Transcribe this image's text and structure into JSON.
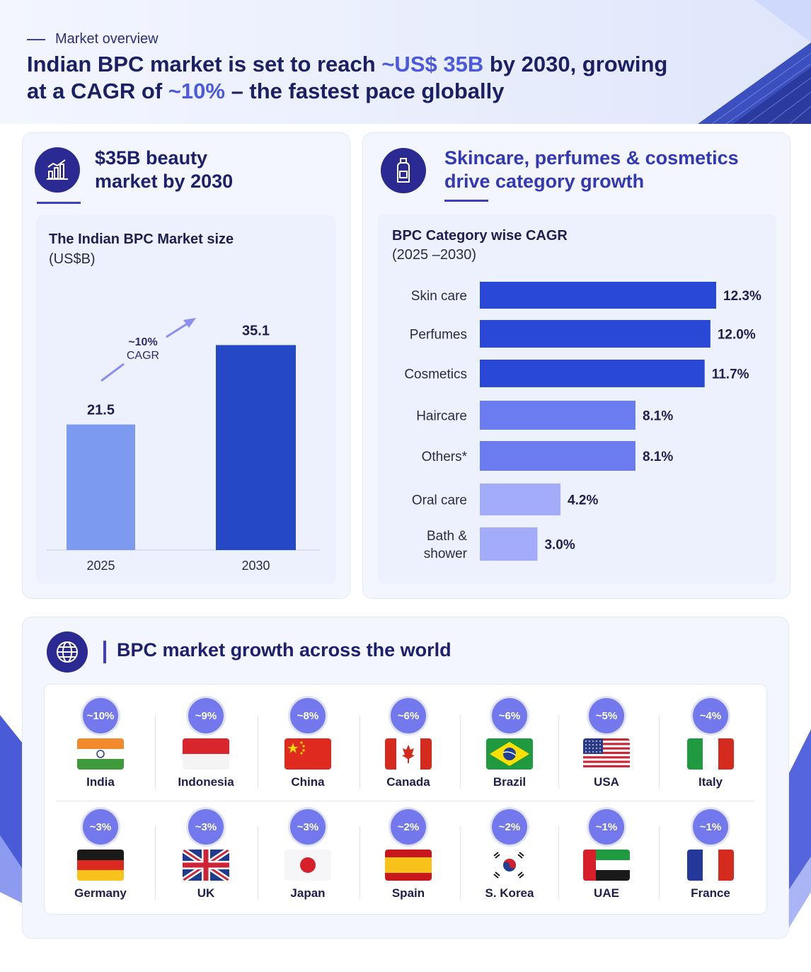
{
  "header": {
    "kicker": "Market overview",
    "title_part1": "Indian BPC market is set to reach ",
    "title_hl1": "~US$ 35B",
    "title_part2": " by 2030, growing",
    "title_part3": "at a CAGR of ",
    "title_hl2": "~10%",
    "title_part4": " – the fastest pace globally"
  },
  "card1": {
    "title_line1": "$35B beauty",
    "title_line2": "market by 2030",
    "icon": "bar-growth-icon"
  },
  "card2": {
    "title_line1": "Skincare, perfumes & cosmetics",
    "title_line2": "drive category growth",
    "icon": "bottle-icon"
  },
  "chart_data": [
    {
      "type": "bar",
      "title": "The Indian BPC Market size",
      "subtitle": "(US$B)",
      "categories": [
        "2025",
        "2030"
      ],
      "values": [
        21.5,
        35.1
      ],
      "value_labels": [
        "21.5",
        "35.1"
      ],
      "annotation_line1": "~10%",
      "annotation_line2": "CAGR",
      "colors": [
        "#7b9af0",
        "#2548c6"
      ],
      "ylim": [
        0,
        40
      ]
    },
    {
      "type": "bar",
      "orientation": "horizontal",
      "title": "BPC Category wise CAGR",
      "subtitle": "(2025 –2030)",
      "categories": [
        "Skin care",
        "Perfumes",
        "Cosmetics",
        "Haircare",
        "Others*",
        "Oral care",
        "Bath & shower"
      ],
      "category_lines": [
        [
          "Skin care"
        ],
        [
          "Perfumes"
        ],
        [
          "Cosmetics"
        ],
        [
          "Haircare"
        ],
        [
          "Others*"
        ],
        [
          "Oral care"
        ],
        [
          "Bath &",
          "shower"
        ]
      ],
      "values": [
        12.3,
        12.0,
        11.7,
        8.1,
        8.1,
        4.2,
        3.0
      ],
      "value_labels": [
        "12.3%",
        "12.0%",
        "11.7%",
        "8.1%",
        "8.1%",
        "4.2%",
        "3.0%"
      ],
      "colors": [
        "#2a48d6",
        "#2a48d6",
        "#2a48d6",
        "#6b7cf0",
        "#6b7cf0",
        "#a3acf8",
        "#a3acf8"
      ],
      "xlim": [
        0,
        13.5
      ]
    }
  ],
  "world": {
    "title": "BPC market growth across the world",
    "icon": "globe-icon",
    "countries": [
      {
        "name": "India",
        "growth": "~10%",
        "flag": "india"
      },
      {
        "name": "Indonesia",
        "growth": "~9%",
        "flag": "indonesia"
      },
      {
        "name": "China",
        "growth": "~8%",
        "flag": "china"
      },
      {
        "name": "Canada",
        "growth": "~6%",
        "flag": "canada"
      },
      {
        "name": "Brazil",
        "growth": "~6%",
        "flag": "brazil"
      },
      {
        "name": "USA",
        "growth": "~5%",
        "flag": "usa"
      },
      {
        "name": "Italy",
        "growth": "~4%",
        "flag": "italy"
      },
      {
        "name": "Germany",
        "growth": "~3%",
        "flag": "germany"
      },
      {
        "name": "UK",
        "growth": "~3%",
        "flag": "uk"
      },
      {
        "name": "Japan",
        "growth": "~3%",
        "flag": "japan"
      },
      {
        "name": "Spain",
        "growth": "~2%",
        "flag": "spain"
      },
      {
        "name": "S. Korea",
        "growth": "~2%",
        "flag": "skorea"
      },
      {
        "name": "UAE",
        "growth": "~1%",
        "flag": "uae"
      },
      {
        "name": "France",
        "growth": "~1%",
        "flag": "france"
      }
    ]
  }
}
